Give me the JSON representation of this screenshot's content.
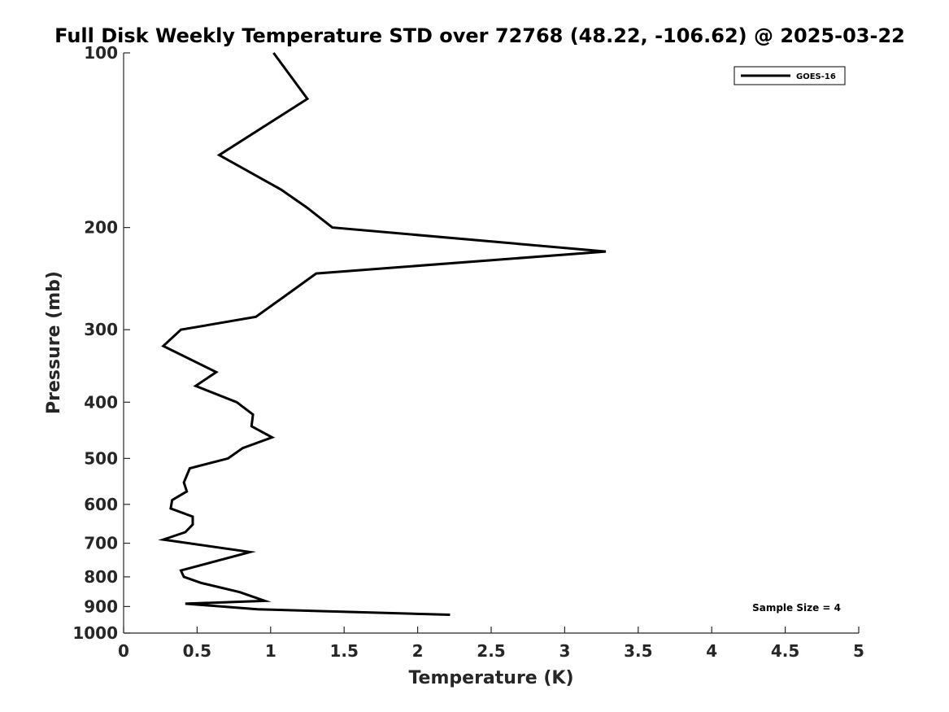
{
  "chart_data": {
    "type": "line",
    "title": "Full Disk Weekly Temperature STD over 72768 (48.22, -106.62) @ 2025-03-22",
    "xlabel": "Temperature (K)",
    "ylabel": "Pressure (mb)",
    "xlim": [
      0,
      5
    ],
    "ylim": [
      100,
      1000
    ],
    "y_scale": "log",
    "y_reversed": true,
    "grid": false,
    "legend_position": "top-right",
    "x_ticks": [
      "0",
      "0.5",
      "1",
      "1.5",
      "2",
      "2.5",
      "3",
      "3.5",
      "4",
      "4.5",
      "5"
    ],
    "x_tick_values": [
      0,
      0.5,
      1,
      1.5,
      2,
      2.5,
      3,
      3.5,
      4,
      4.5,
      5
    ],
    "y_ticks": [
      "100",
      "200",
      "300",
      "400",
      "500",
      "600",
      "700",
      "800",
      "900",
      "1000"
    ],
    "y_tick_values": [
      100,
      200,
      300,
      400,
      500,
      600,
      700,
      800,
      900,
      1000
    ],
    "series": [
      {
        "name": "GOES-16",
        "color": "#000000",
        "x": [
          1.02,
          1.25,
          0.65,
          1.07,
          1.25,
          1.42,
          3.28,
          1.31,
          1.12,
          0.9,
          0.39,
          0.27,
          0.63,
          0.49,
          0.77,
          0.88,
          0.87,
          1.01,
          0.81,
          0.71,
          0.45,
          0.41,
          0.43,
          0.33,
          0.32,
          0.47,
          0.47,
          0.42,
          0.27,
          0.86,
          0.39,
          0.41,
          0.53,
          0.79,
          0.96,
          0.42,
          0.91,
          2.22
        ],
        "y": [
          100,
          120,
          150,
          172,
          185,
          200,
          220,
          240,
          260,
          285,
          300,
          320,
          355,
          375,
          400,
          420,
          440,
          460,
          480,
          500,
          520,
          550,
          570,
          590,
          610,
          630,
          650,
          670,
          690,
          725,
          780,
          800,
          820,
          850,
          880,
          890,
          910,
          930
        ]
      }
    ],
    "annotation": "Sample Size = 4"
  }
}
